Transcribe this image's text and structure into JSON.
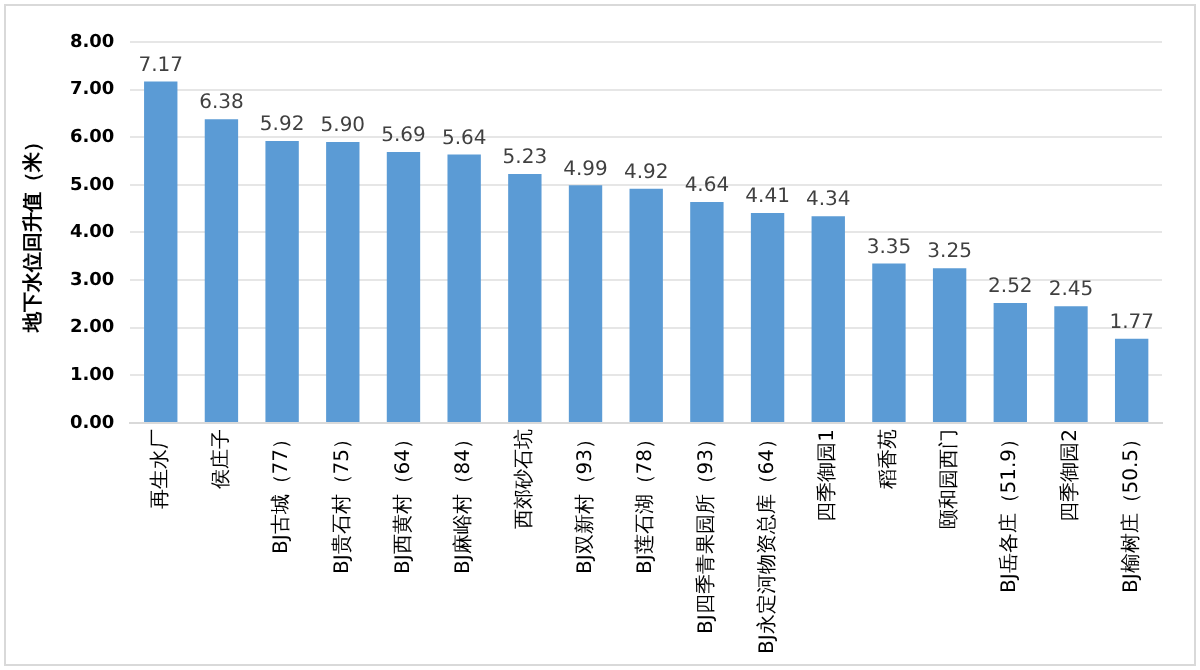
{
  "chart_data": {
    "type": "bar",
    "ylabel": "地下水位回升值（米）",
    "categories": [
      "再生水厂",
      "侯庄子",
      "BJ古城（77）",
      "BJ贵石村（75）",
      "BJ西黄村（64）",
      "BJ麻峪村（84）",
      "西郊砂石坑",
      "BJ双新村（93）",
      "BJ莲石湖（78）",
      "BJ四季青果园所（93）",
      "BJ永定河物资总库（64）",
      "四季御园1",
      "稻香苑",
      "颐和园西门",
      "BJ岳各庄（51.9）",
      "四季御园2",
      "BJ榆树庄（50.5）"
    ],
    "values": [
      7.17,
      6.38,
      5.92,
      5.9,
      5.69,
      5.64,
      5.23,
      4.99,
      4.92,
      4.64,
      4.41,
      4.34,
      3.35,
      3.25,
      2.52,
      2.45,
      1.77
    ],
    "value_labels": [
      "7.17",
      "6.38",
      "5.92",
      "5.90",
      "5.69",
      "5.64",
      "5.23",
      "4.99",
      "4.92",
      "4.64",
      "4.41",
      "4.34",
      "3.35",
      "3.25",
      "2.52",
      "2.45",
      "1.77"
    ],
    "color": "#5b9bd5",
    "ylim": [
      0,
      8
    ],
    "yticks": [
      {
        "value": 0,
        "label": "0.00"
      },
      {
        "value": 1,
        "label": "1.00"
      },
      {
        "value": 2,
        "label": "2.00"
      },
      {
        "value": 3,
        "label": "3.00"
      },
      {
        "value": 4,
        "label": "4.00"
      },
      {
        "value": 5,
        "label": "5.00"
      },
      {
        "value": 6,
        "label": "6.00"
      },
      {
        "value": 7,
        "label": "7.00"
      },
      {
        "value": 8,
        "label": "8.00"
      }
    ],
    "grid": "y",
    "legend": false
  }
}
